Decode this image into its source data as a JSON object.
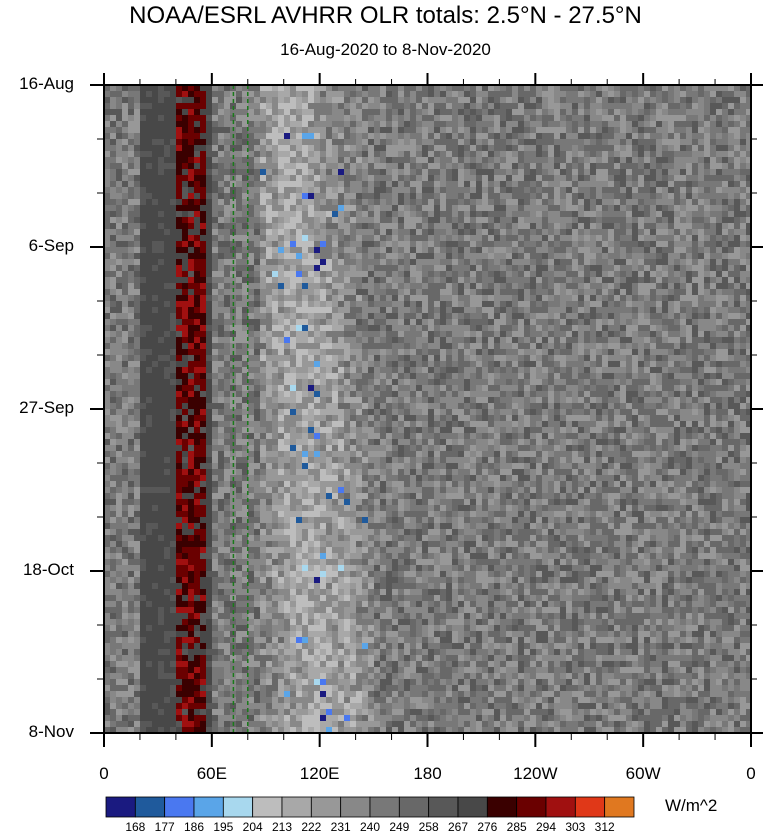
{
  "chart_data": {
    "type": "heatmap",
    "title": "NOAA/ESRL AVHRR OLR totals: 2.5°N - 27.5°N",
    "subtitle": "16-Aug-2020 to 8-Nov-2020",
    "xlabel": "",
    "ylabel": "",
    "x_ticks": [
      "0",
      "60E",
      "120E",
      "180",
      "120W",
      "60W",
      "0"
    ],
    "x_range_deg_east": [
      0,
      360
    ],
    "y_ticks": [
      "16-Aug",
      "6-Sep",
      "27-Sep",
      "18-Oct",
      "8-Nov"
    ],
    "time_range": [
      "16-Aug-2020",
      "8-Nov-2020"
    ],
    "units": "W/m^2",
    "colorbar": {
      "levels": [
        "168",
        "177",
        "186",
        "195",
        "204",
        "213",
        "222",
        "231",
        "240",
        "249",
        "258",
        "267",
        "276",
        "285",
        "294",
        "303",
        "312"
      ],
      "colors": [
        "#1a1a80",
        "#1f5a9c",
        "#4a78f0",
        "#5aa5e8",
        "#a8d8ee",
        "#bdbdbd",
        "#a8a8a8",
        "#989898",
        "#888888",
        "#787878",
        "#686868",
        "#585858",
        "#484848",
        "#3a0000",
        "#6a0000",
        "#a01010",
        "#e03818",
        "#e07820"
      ]
    },
    "reference_lines_deg_east": [
      72,
      80
    ]
  }
}
